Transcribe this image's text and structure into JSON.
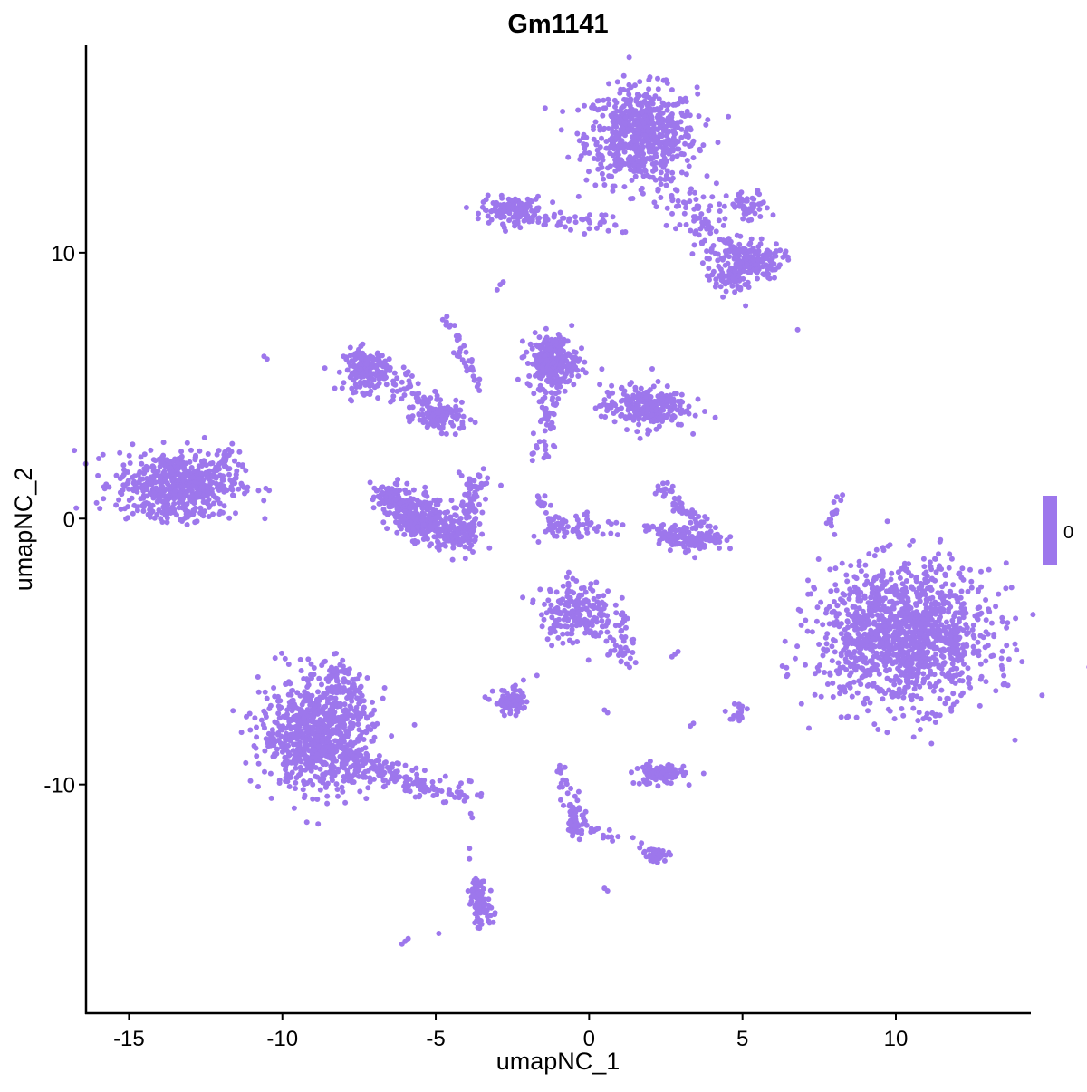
{
  "chart_data": {
    "type": "scatter",
    "title": "Gm1141",
    "xlabel": "umapNC_1",
    "ylabel": "umapNC_2",
    "xlim": [
      -16.4,
      14.4
    ],
    "ylim": [
      -18.6,
      17.8
    ],
    "x_ticks": [
      -15,
      -10,
      -5,
      0,
      5,
      10
    ],
    "x_tick_labels": [
      "-15",
      "-10",
      "-5",
      "0",
      "5",
      "10"
    ],
    "y_ticks": [
      -10,
      0,
      10
    ],
    "y_tick_labels": [
      "-10",
      "0",
      "10"
    ],
    "grid": false,
    "point_color": "#9D77EC",
    "legend": {
      "placement": "right",
      "type": "colorbar",
      "labels": [
        "0"
      ],
      "color": "#9D77EC"
    },
    "clusters_note_free": true,
    "clusters": [
      [
        1.7,
        14.4,
        0.9,
        0.9,
        650
      ],
      [
        5.3,
        9.7,
        0.5,
        0.35,
        150
      ],
      [
        4.5,
        9.0,
        0.3,
        0.3,
        50
      ],
      [
        5.2,
        11.7,
        0.35,
        0.3,
        50
      ],
      [
        -2.5,
        11.6,
        0.5,
        0.25,
        140
      ],
      [
        -7.3,
        5.6,
        0.35,
        0.4,
        150
      ],
      [
        -4.8,
        3.8,
        0.4,
        0.25,
        100
      ],
      [
        -13.4,
        1.3,
        1.0,
        0.6,
        550
      ],
      [
        -1.2,
        5.9,
        0.4,
        0.5,
        250
      ],
      [
        1.8,
        4.2,
        0.7,
        0.4,
        250
      ],
      [
        3.4,
        -0.7,
        0.5,
        0.25,
        130
      ],
      [
        -0.4,
        -3.5,
        0.6,
        0.6,
        200
      ],
      [
        10.3,
        -4.4,
        1.4,
        1.3,
        1300
      ],
      [
        -8.9,
        -8.1,
        0.9,
        1.0,
        800
      ],
      [
        -2.5,
        -6.9,
        0.3,
        0.25,
        80
      ],
      [
        2.3,
        -9.6,
        0.4,
        0.2,
        100
      ],
      [
        -3.5,
        -14.6,
        0.2,
        0.4,
        70
      ],
      [
        2.2,
        -12.6,
        0.2,
        0.15,
        30
      ],
      [
        4.9,
        -7.3,
        0.15,
        0.2,
        20
      ],
      [
        -0.4,
        -11.3,
        0.15,
        0.4,
        40
      ]
    ],
    "segments": [
      [
        2.5,
        12.5,
        5.0,
        9.5,
        120,
        0.4
      ],
      [
        -2.0,
        11.3,
        1.0,
        11.0,
        50,
        0.2
      ],
      [
        -7.0,
        5.8,
        -4.8,
        3.8,
        90,
        0.35
      ],
      [
        -6.5,
        0.8,
        -4.0,
        -0.8,
        300,
        0.35
      ],
      [
        -4.0,
        -0.8,
        -3.7,
        1.7,
        100,
        0.2
      ],
      [
        -6.6,
        1.0,
        -5.5,
        -0.7,
        120,
        0.25
      ],
      [
        -4.7,
        7.5,
        -3.6,
        4.9,
        40,
        0.1
      ],
      [
        -1.6,
        2.2,
        -1.2,
        5.0,
        50,
        0.2
      ],
      [
        2.2,
        1.3,
        3.8,
        -0.3,
        50,
        0.15
      ],
      [
        1.9,
        -0.3,
        3.0,
        -0.8,
        30,
        0.15
      ],
      [
        -1.5,
        -0.3,
        0.8,
        -0.3,
        50,
        0.3
      ],
      [
        -1.6,
        0.9,
        -1.0,
        -0.7,
        30,
        0.08
      ],
      [
        -8.3,
        -9.0,
        -4.0,
        -10.5,
        180,
        0.3
      ],
      [
        -8.5,
        -5.3,
        -7.7,
        -7.0,
        60,
        0.3
      ],
      [
        1.0,
        -4.0,
        1.1,
        -5.4,
        40,
        0.2
      ],
      [
        -1.0,
        -9.1,
        -0.4,
        -11.9,
        40,
        0.1
      ],
      [
        0.0,
        -11.6,
        2.0,
        -12.4,
        15,
        0.1
      ],
      [
        -3.7,
        -13.6,
        -3.6,
        -15.1,
        30,
        0.1
      ],
      [
        7.8,
        -0.2,
        8.3,
        1.1,
        15,
        0.05
      ],
      [
        -12.3,
        1.4,
        -11.6,
        2.8,
        25,
        0.12
      ],
      [
        -14.5,
        0.4,
        -12.2,
        0.0,
        40,
        0.15
      ]
    ],
    "singles": [
      [
        -10.6,
        6.1
      ],
      [
        -10.5,
        6.0
      ],
      [
        -2.9,
        8.8
      ],
      [
        -3.0,
        8.6
      ],
      [
        -2.8,
        8.9
      ],
      [
        6.8,
        7.1
      ],
      [
        5.1,
        8.0
      ],
      [
        2.8,
        -5.1
      ],
      [
        2.9,
        -5.0
      ],
      [
        2.7,
        -5.2
      ],
      [
        3.4,
        -7.7
      ],
      [
        3.3,
        -7.8
      ],
      [
        0.5,
        -7.2
      ],
      [
        0.6,
        -7.3
      ],
      [
        0.6,
        -14.0
      ],
      [
        0.5,
        -13.9
      ],
      [
        -6.0,
        -15.9
      ],
      [
        -6.1,
        -16.0
      ],
      [
        -5.9,
        -15.8
      ],
      [
        -4.9,
        -15.6
      ],
      [
        -3.9,
        -12.4
      ],
      [
        -3.9,
        -12.8
      ],
      [
        -1.7,
        -5.9
      ],
      [
        8.0,
        -0.6
      ]
    ]
  }
}
